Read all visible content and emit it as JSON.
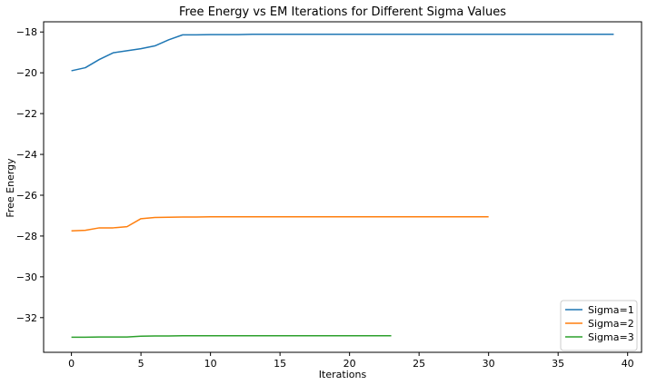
{
  "chart_data": {
    "type": "line",
    "title": "Free Energy vs EM Iterations for Different Sigma Values",
    "xlabel": "Iterations",
    "ylabel": "Free Energy",
    "xlim": [
      -2,
      41
    ],
    "ylim": [
      -33.7,
      -17.5
    ],
    "xticks": [
      0,
      5,
      10,
      15,
      20,
      25,
      30,
      35,
      40
    ],
    "yticks": [
      -32,
      -30,
      -28,
      -26,
      -24,
      -22,
      -20,
      -18
    ],
    "grid": false,
    "legend_position": "lower-right",
    "series": [
      {
        "name": "Sigma=1",
        "color": "#1f77b4",
        "x": [
          0,
          1,
          2,
          3,
          4,
          5,
          6,
          7,
          8,
          9,
          10,
          11,
          12,
          13,
          14,
          15,
          16,
          17,
          18,
          19,
          20,
          21,
          22,
          23,
          24,
          25,
          26,
          27,
          28,
          29,
          30,
          31,
          32,
          33,
          34,
          35,
          36,
          37,
          38,
          39
        ],
        "y": [
          -19.9,
          -19.75,
          -19.35,
          -19.02,
          -18.92,
          -18.82,
          -18.68,
          -18.38,
          -18.14,
          -18.14,
          -18.13,
          -18.13,
          -18.13,
          -18.11,
          -18.11,
          -18.11,
          -18.11,
          -18.11,
          -18.11,
          -18.11,
          -18.11,
          -18.11,
          -18.11,
          -18.11,
          -18.11,
          -18.11,
          -18.11,
          -18.11,
          -18.11,
          -18.11,
          -18.11,
          -18.11,
          -18.11,
          -18.11,
          -18.11,
          -18.11,
          -18.11,
          -18.11,
          -18.11,
          -18.11
        ]
      },
      {
        "name": "Sigma=2",
        "color": "#ff7f0e",
        "x": [
          0,
          1,
          2,
          3,
          4,
          5,
          6,
          7,
          8,
          9,
          10,
          11,
          12,
          13,
          14,
          15,
          16,
          17,
          18,
          19,
          20,
          21,
          22,
          23,
          24,
          25,
          26,
          27,
          28,
          29,
          30
        ],
        "y": [
          -27.75,
          -27.72,
          -27.6,
          -27.6,
          -27.54,
          -27.15,
          -27.09,
          -27.08,
          -27.07,
          -27.07,
          -27.06,
          -27.06,
          -27.06,
          -27.06,
          -27.06,
          -27.06,
          -27.06,
          -27.06,
          -27.06,
          -27.06,
          -27.06,
          -27.06,
          -27.06,
          -27.06,
          -27.06,
          -27.06,
          -27.06,
          -27.06,
          -27.06,
          -27.06,
          -27.06
        ]
      },
      {
        "name": "Sigma=3",
        "color": "#2ca02c",
        "x": [
          0,
          1,
          2,
          3,
          4,
          5,
          6,
          7,
          8,
          9,
          10,
          11,
          12,
          13,
          14,
          15,
          16,
          17,
          18,
          19,
          20,
          21,
          22,
          23
        ],
        "y": [
          -32.96,
          -32.96,
          -32.95,
          -32.95,
          -32.95,
          -32.91,
          -32.9,
          -32.9,
          -32.89,
          -32.89,
          -32.89,
          -32.89,
          -32.89,
          -32.89,
          -32.89,
          -32.89,
          -32.89,
          -32.89,
          -32.89,
          -32.89,
          -32.89,
          -32.89,
          -32.89,
          -32.89
        ]
      }
    ]
  }
}
